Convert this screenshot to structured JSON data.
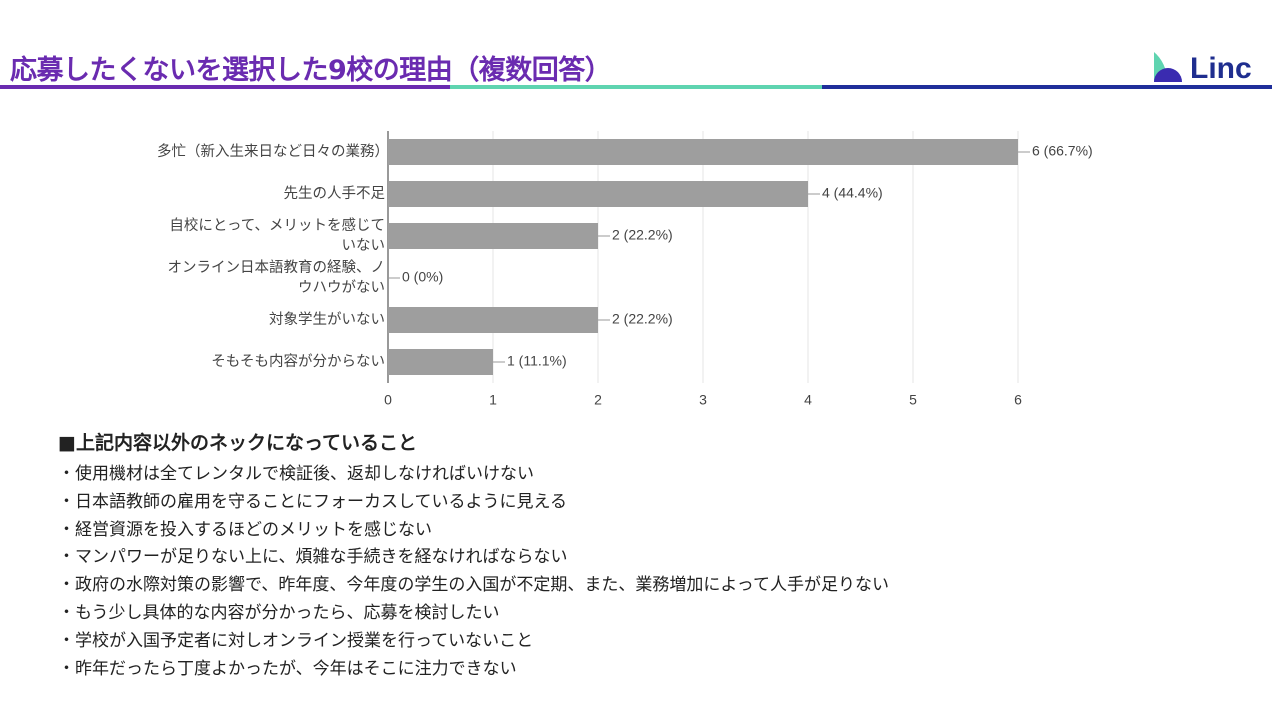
{
  "header": {
    "title": "応募したくないを選択した9校の理由（複数回答）",
    "logo": "Linc"
  },
  "chart_data": {
    "type": "bar",
    "orientation": "horizontal",
    "categories": [
      "多忙（新入生来日など日々の業務）",
      "先生の人手不足",
      "自校にとって、メリットを感じていない",
      "オンライン日本語教育の経験、ノウハウがない",
      "対象学生がいない",
      "そもそも内容が分からない"
    ],
    "values": [
      6,
      4,
      2,
      0,
      2,
      1
    ],
    "value_labels": [
      "6 (66.7%)",
      "4 (44.4%)",
      "2 (22.2%)",
      "0 (0%)",
      "2 (22.2%)",
      "1 (11.1%)"
    ],
    "color": "#9e9e9e",
    "xlim": [
      0,
      6
    ],
    "xticks": [
      0,
      1,
      2,
      3,
      4,
      5,
      6
    ],
    "grid": true
  },
  "notes": {
    "heading": "■上記内容以外のネックになっていること",
    "items": [
      "・使用機材は全てレンタルで検証後、返却しなければいけない",
      "・日本語教師の雇用を守ることにフォーカスしているように見える",
      "・経営資源を投入するほどのメリットを感じない",
      "・マンパワーが足りない上に、煩雑な手続きを経なければならない",
      "・政府の水際対策の影響で、昨年度、今年度の学生の入国が不定期、また、業務増加によって人手が足りない",
      "・もう少し具体的な内容が分かったら、応募を検討したい",
      "・学校が入国予定者に対しオンライン授業を行っていないこと",
      "・昨年だったら丁度よかったが、今年はそこに注力できない"
    ]
  }
}
